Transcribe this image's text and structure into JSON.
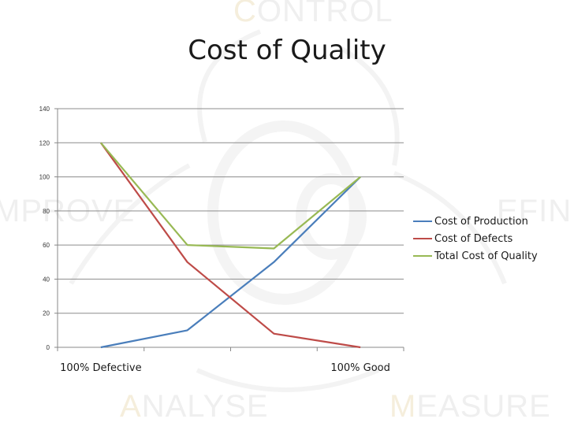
{
  "watermark": {
    "control": {
      "first": "C",
      "rest": "ONTROL"
    },
    "improve": {
      "first": "",
      "rest": "MPROVE"
    },
    "define": {
      "first": "",
      "rest": "EFIN"
    },
    "analyse": {
      "first": "A",
      "rest": "NALYSE"
    },
    "measure": {
      "first": "M",
      "rest": "EASURE"
    }
  },
  "chart_data": {
    "type": "line",
    "title": "Cost of Quality",
    "categories": [
      "100% Defective",
      "",
      "",
      "100% Good"
    ],
    "ylim": [
      0,
      140
    ],
    "yticks": [
      0,
      20,
      40,
      60,
      80,
      100,
      120,
      140
    ],
    "grid": true,
    "legend_position": "right",
    "series": [
      {
        "name": "Cost of Production",
        "color": "#4a7ebb",
        "values": [
          0,
          10,
          50,
          100
        ]
      },
      {
        "name": "Cost of Defects",
        "color": "#be4b48",
        "values": [
          120,
          50,
          8,
          0
        ]
      },
      {
        "name": "Total Cost of Quality",
        "color": "#98b954",
        "values": [
          120,
          60,
          58,
          100
        ]
      }
    ]
  }
}
